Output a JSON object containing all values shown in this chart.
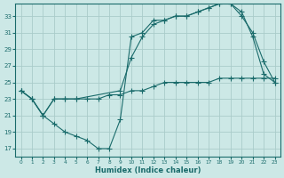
{
  "title": "",
  "xlabel": "Humidex (Indice chaleur)",
  "ylabel": "",
  "background_color": "#cce8e6",
  "grid_color": "#aaccca",
  "line_color": "#1a6b6b",
  "xlim": [
    -0.5,
    23.5
  ],
  "ylim": [
    16,
    34.5
  ],
  "xticks": [
    0,
    1,
    2,
    3,
    4,
    5,
    6,
    7,
    8,
    9,
    10,
    11,
    12,
    13,
    14,
    15,
    16,
    17,
    18,
    19,
    20,
    21,
    22,
    23
  ],
  "yticks": [
    17,
    19,
    21,
    23,
    25,
    27,
    29,
    31,
    33
  ],
  "line1_x": [
    0,
    1,
    2,
    3,
    4,
    5,
    6,
    7,
    8,
    9,
    10,
    11,
    12,
    13,
    14,
    15,
    16,
    17,
    18,
    19,
    20,
    21,
    22,
    23
  ],
  "line1_y": [
    24,
    23,
    21,
    20,
    19,
    18.5,
    18,
    17,
    17,
    20.5,
    30.5,
    31,
    32.5,
    32.5,
    33,
    33,
    33.5,
    34,
    34.5,
    34.5,
    33.5,
    30.5,
    26,
    25
  ],
  "line2_x": [
    0,
    1,
    2,
    3,
    4,
    5,
    9,
    10,
    11,
    12,
    13,
    14,
    15,
    16,
    17,
    18,
    19,
    20,
    21,
    22,
    23
  ],
  "line2_y": [
    24,
    23,
    21,
    23,
    23,
    23,
    24,
    28,
    30.5,
    32,
    32.5,
    33,
    33,
    33.5,
    34,
    34.5,
    34.5,
    33,
    31,
    27.5,
    25
  ],
  "line3_x": [
    0,
    1,
    2,
    3,
    4,
    5,
    6,
    7,
    8,
    9,
    10,
    11,
    12,
    13,
    14,
    15,
    16,
    17,
    18,
    19,
    20,
    21,
    22,
    23
  ],
  "line3_y": [
    24,
    23,
    21,
    23,
    23,
    23,
    23,
    23,
    23.5,
    23.5,
    24,
    24,
    24.5,
    25,
    25,
    25,
    25,
    25,
    25.5,
    25.5,
    25.5,
    25.5,
    25.5,
    25.5
  ]
}
